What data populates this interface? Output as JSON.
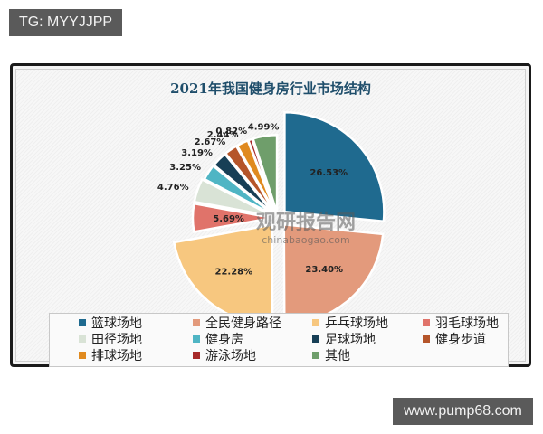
{
  "badges": {
    "top_left": "TG: MYYJJPP",
    "bottom_right": "www.pump68.com"
  },
  "watermark": {
    "cn": "观研报告网",
    "en": "chinabaogao.com"
  },
  "chart_data": {
    "type": "pie",
    "title": "2021年我国健身房行业市场结构",
    "categories": [
      "篮球场地",
      "全民健身路径",
      "乒乓球场地",
      "羽毛球场地",
      "田径场地",
      "健身房",
      "足球场地",
      "健身步道",
      "排球场地",
      "游泳场地",
      "其他"
    ],
    "values": [
      26.53,
      23.4,
      22.28,
      5.69,
      4.76,
      3.25,
      3.19,
      2.67,
      2.44,
      0.82,
      4.99
    ],
    "labels": [
      "26.53%",
      "23.40%",
      "22.28%",
      "5.69%",
      "4.76%",
      "3.25%",
      "3.19%",
      "2.67%",
      "2.44%",
      "0.82%",
      "4.99%"
    ],
    "colors": [
      "#1f6a8f",
      "#e39a7c",
      "#f7c77f",
      "#e0736a",
      "#d9e3d6",
      "#4fb5c4",
      "#173f56",
      "#b5552a",
      "#e08a1f",
      "#a72a2a",
      "#6f9e6b"
    ],
    "legend_position": "bottom",
    "exploded": true
  },
  "legend": {
    "items": [
      {
        "label": "篮球场地",
        "color": "#1f6a8f"
      },
      {
        "label": "全民健身路径",
        "color": "#e39a7c"
      },
      {
        "label": "乒乓球场地",
        "color": "#f7c77f"
      },
      {
        "label": "羽毛球场地",
        "color": "#e0736a"
      },
      {
        "label": "田径场地",
        "color": "#d9e3d6"
      },
      {
        "label": "健身房",
        "color": "#4fb5c4"
      },
      {
        "label": "足球场地",
        "color": "#173f56"
      },
      {
        "label": "健身步道",
        "color": "#b5552a"
      },
      {
        "label": "排球场地",
        "color": "#e08a1f"
      },
      {
        "label": "游泳场地",
        "color": "#a72a2a"
      },
      {
        "label": "其他",
        "color": "#6f9e6b"
      }
    ]
  }
}
